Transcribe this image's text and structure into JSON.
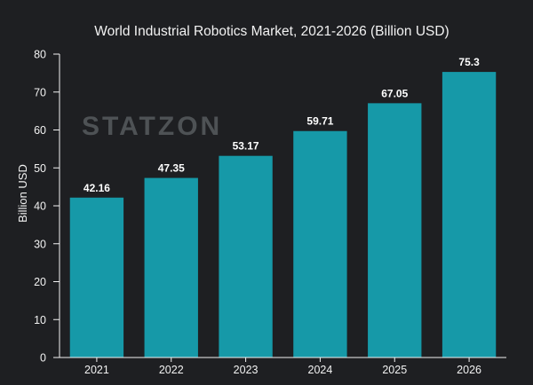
{
  "chart_data": {
    "type": "bar",
    "title": "World Industrial Robotics Market, 2021-2026 (Billion USD)",
    "xlabel": "",
    "ylabel": "Billion USD",
    "categories": [
      "2021",
      "2022",
      "2023",
      "2024",
      "2025",
      "2026"
    ],
    "values": [
      42.16,
      47.35,
      53.17,
      59.71,
      67.05,
      75.3
    ],
    "data_labels": [
      "42.16",
      "47.35",
      "53.17",
      "59.71",
      "67.05",
      "75.3"
    ],
    "ylim": [
      0,
      80
    ],
    "yticks": [
      0,
      10,
      20,
      30,
      40,
      50,
      60,
      70,
      80
    ],
    "grid": false,
    "legend": "none"
  },
  "watermark": "STATZON",
  "colors": {
    "background": "#1e1f22",
    "bar": "#1699a8",
    "text": "#f2f2f2",
    "axis": "#f2f2f2"
  }
}
